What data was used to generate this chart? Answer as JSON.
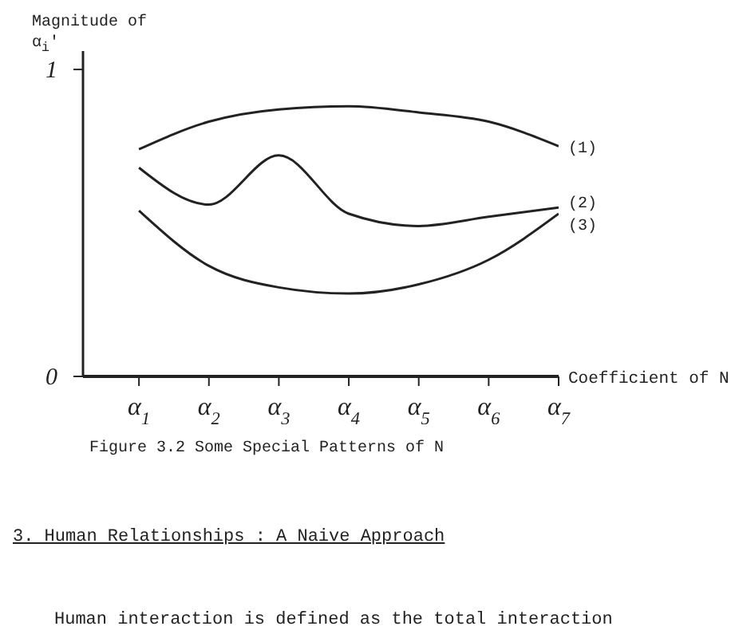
{
  "chart_data": {
    "type": "line",
    "xlabel": "Coefficient of N",
    "ylabel": "Magnitude of α$_{i}$'",
    "categories": [
      "α$_{1}$",
      "α$_{2}$",
      "α$_{3}$",
      "α$_{4}$",
      "α$_{5}$",
      "α$_{6}$",
      "α$_{7}$"
    ],
    "ylim": [
      0,
      1.06
    ],
    "yticks": [
      0,
      1
    ],
    "series": [
      {
        "name": "(1)",
        "color": "#222222",
        "values": [
          0.74,
          0.83,
          0.87,
          0.88,
          0.86,
          0.83,
          0.75
        ]
      },
      {
        "name": "(2)",
        "color": "#222222",
        "values": [
          0.68,
          0.56,
          0.72,
          0.53,
          0.49,
          0.52,
          0.55
        ]
      },
      {
        "name": "(3)",
        "color": "#222222",
        "values": [
          0.54,
          0.36,
          0.29,
          0.27,
          0.3,
          0.38,
          0.53
        ]
      }
    ],
    "annotations": [
      "Figure 3.2  Some Special Patterns of N",
      "3.  Human Relationships : A Naive Approach",
      "Human interaction is defined as the total interaction"
    ],
    "marker": "none",
    "line_style": "solid"
  }
}
